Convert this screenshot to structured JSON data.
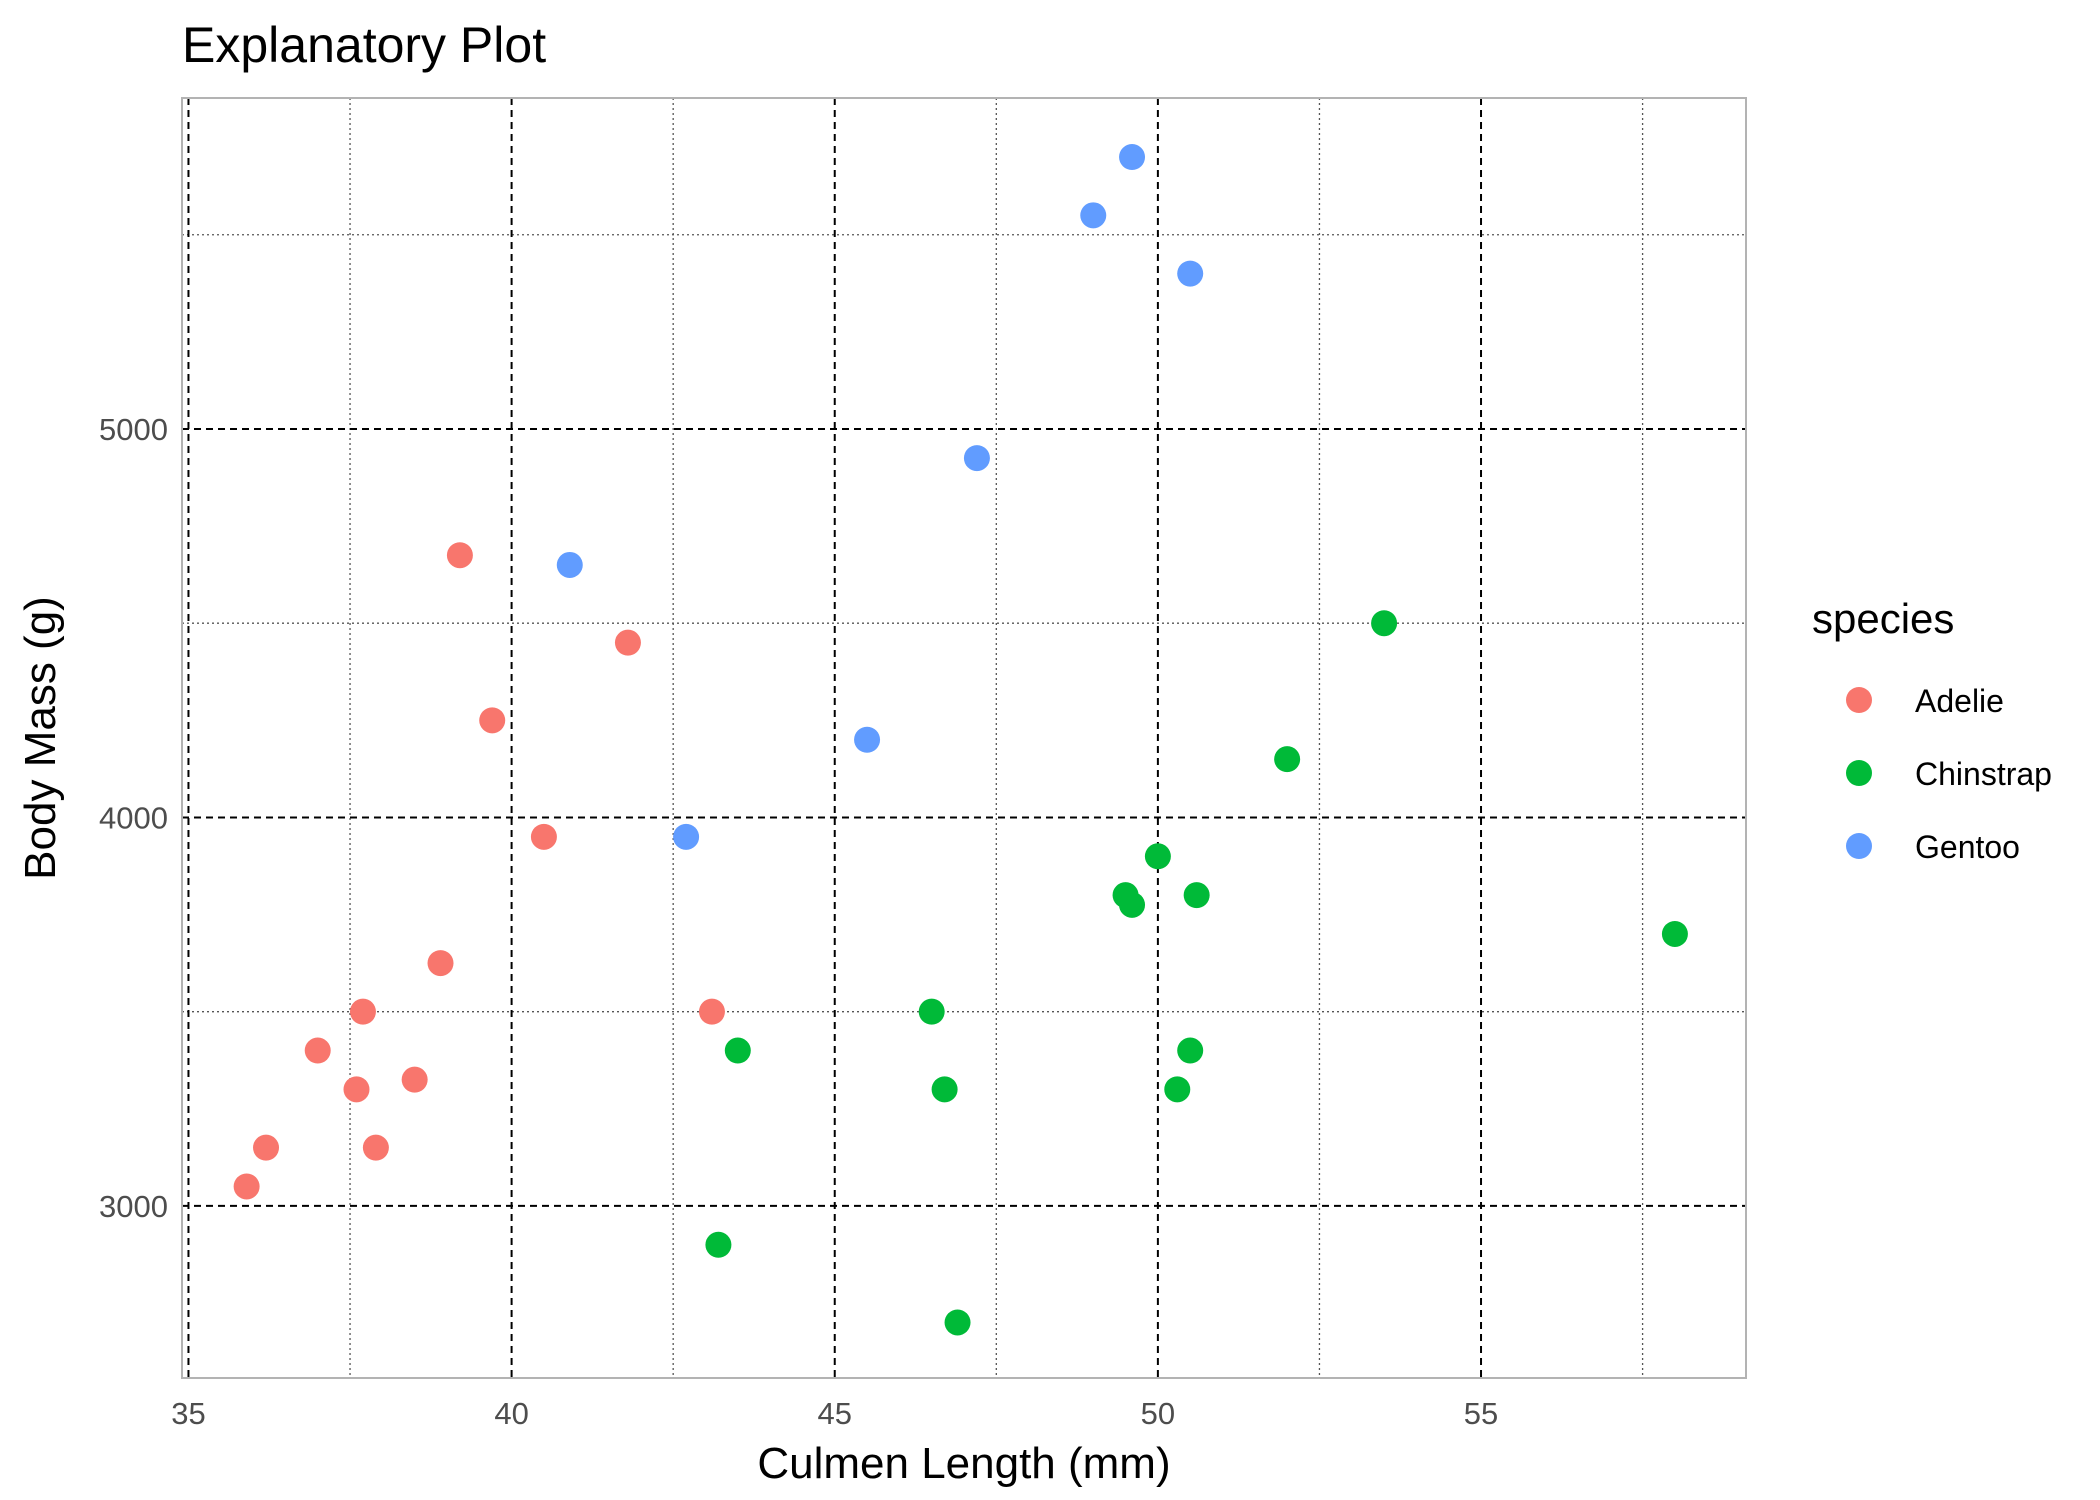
{
  "chart_data": {
    "type": "scatter",
    "title": "Explanatory Plot",
    "xlabel": "Culmen Length (mm)",
    "ylabel": "Body Mass (g)",
    "xlim": [
      34.9,
      59.1
    ],
    "ylim": [
      2557,
      5852
    ],
    "x_major_ticks": [
      35,
      40,
      45,
      50,
      55
    ],
    "x_minor_ticks": [
      37.5,
      42.5,
      47.5,
      52.5,
      57.5
    ],
    "y_major_ticks": [
      3000,
      4000,
      5000
    ],
    "y_minor_ticks": [
      3500,
      4500,
      5500
    ],
    "grid": true,
    "legend": {
      "title": "species",
      "position": "right"
    },
    "series": [
      {
        "name": "Adelie",
        "color": "#F8766D",
        "points": [
          {
            "x": 35.9,
            "y": 3050
          },
          {
            "x": 36.2,
            "y": 3150
          },
          {
            "x": 37.0,
            "y": 3400
          },
          {
            "x": 37.6,
            "y": 3300
          },
          {
            "x": 37.7,
            "y": 3500
          },
          {
            "x": 37.9,
            "y": 3150
          },
          {
            "x": 38.5,
            "y": 3325
          },
          {
            "x": 38.9,
            "y": 3625
          },
          {
            "x": 39.2,
            "y": 4675
          },
          {
            "x": 39.7,
            "y": 4250
          },
          {
            "x": 40.5,
            "y": 3950
          },
          {
            "x": 41.8,
            "y": 4450
          },
          {
            "x": 43.1,
            "y": 3500
          }
        ]
      },
      {
        "name": "Chinstrap",
        "color": "#00BA38",
        "points": [
          {
            "x": 43.2,
            "y": 2900
          },
          {
            "x": 43.5,
            "y": 3400
          },
          {
            "x": 46.5,
            "y": 3500
          },
          {
            "x": 46.7,
            "y": 3300
          },
          {
            "x": 46.9,
            "y": 2700
          },
          {
            "x": 49.5,
            "y": 3800
          },
          {
            "x": 49.6,
            "y": 3775
          },
          {
            "x": 50.0,
            "y": 3900
          },
          {
            "x": 50.3,
            "y": 3300
          },
          {
            "x": 50.5,
            "y": 3400
          },
          {
            "x": 50.6,
            "y": 3800
          },
          {
            "x": 52.0,
            "y": 4150
          },
          {
            "x": 53.5,
            "y": 4500
          },
          {
            "x": 58.0,
            "y": 3700
          }
        ]
      },
      {
        "name": "Gentoo",
        "color": "#619CFF",
        "points": [
          {
            "x": 40.9,
            "y": 4650
          },
          {
            "x": 42.7,
            "y": 3950
          },
          {
            "x": 45.5,
            "y": 4200
          },
          {
            "x": 47.2,
            "y": 4925
          },
          {
            "x": 49.0,
            "y": 5550
          },
          {
            "x": 49.6,
            "y": 5700
          },
          {
            "x": 50.5,
            "y": 5400
          }
        ]
      }
    ]
  }
}
